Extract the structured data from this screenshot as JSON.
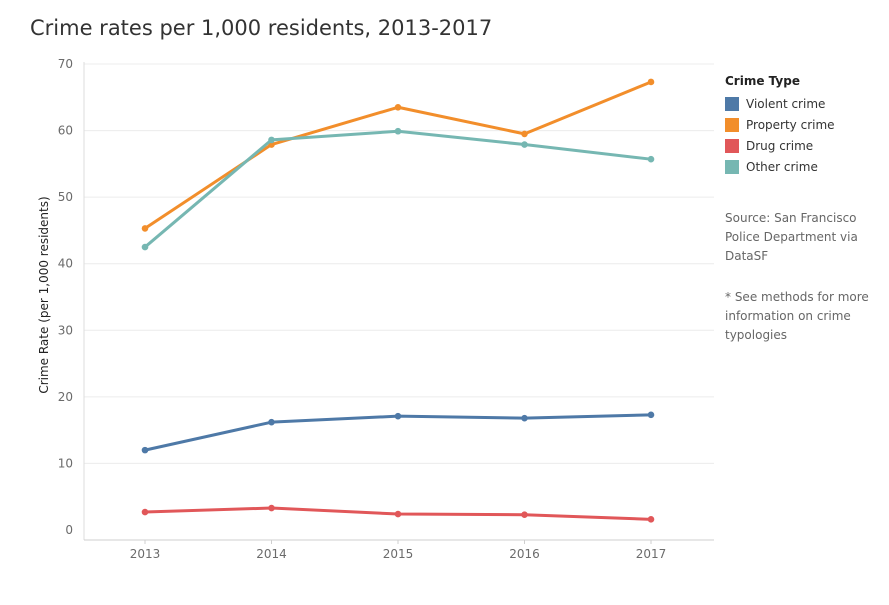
{
  "chart_data": {
    "type": "line",
    "title": "Crime rates per 1,000 residents, 2013-2017",
    "xlabel": "",
    "ylabel": "Crime Rate (per 1,000 residents)",
    "x": [
      "2013",
      "2014",
      "2015",
      "2016",
      "2017"
    ],
    "ylim": [
      0,
      70
    ],
    "yticks": [
      0,
      10,
      20,
      30,
      40,
      50,
      60,
      70
    ],
    "grid": "horizontal",
    "legend_position": "right",
    "legend_title": "Crime Type",
    "series": [
      {
        "name": "Violent crime",
        "color": "#4e79a7",
        "values": [
          12.0,
          16.2,
          17.1,
          16.8,
          17.3
        ]
      },
      {
        "name": "Property crime",
        "color": "#f28e2b",
        "values": [
          45.3,
          57.9,
          63.5,
          59.5,
          67.3
        ]
      },
      {
        "name": "Drug crime",
        "color": "#e15759",
        "values": [
          2.7,
          3.3,
          2.4,
          2.3,
          1.6
        ]
      },
      {
        "name": "Other crime",
        "color": "#76b7b2",
        "values": [
          42.5,
          58.6,
          59.9,
          57.9,
          55.7
        ]
      }
    ]
  },
  "notes": {
    "source": "Source: San Francisco Police Department via DataSF",
    "methods": "* See methods for more information on crime typologies"
  }
}
